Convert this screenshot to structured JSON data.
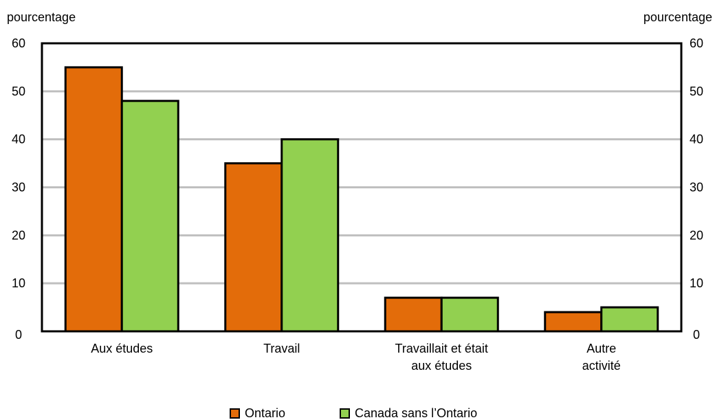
{
  "chart_data": {
    "type": "bar",
    "title": "",
    "ylabel_left": "pourcentage",
    "ylabel_right": "pourcentage",
    "ylim": [
      0,
      60
    ],
    "yticks": [
      "0",
      "10",
      "20",
      "30",
      "40",
      "50",
      "60"
    ],
    "categories": [
      [
        "Aux études"
      ],
      [
        "Travail"
      ],
      [
        "Travaillait et était",
        "aux études"
      ],
      [
        "Autre",
        "activité"
      ]
    ],
    "series": [
      {
        "name": "Ontario",
        "color": "#e36c0a",
        "values": [
          55,
          35,
          7,
          4
        ]
      },
      {
        "name": "Canada sans l’Ontario",
        "color": "#92d050",
        "values": [
          48,
          40,
          7,
          5
        ]
      }
    ],
    "grid": true,
    "legend_position": "bottom"
  }
}
